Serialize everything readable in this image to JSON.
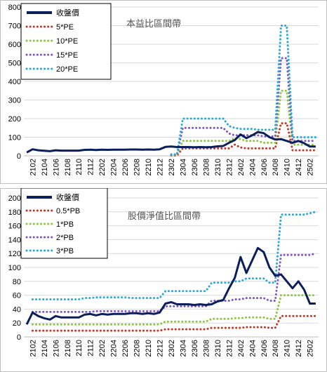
{
  "chart_data": [
    {
      "type": "line",
      "title": "本益比區間帶",
      "ylim": [
        0,
        800
      ],
      "yticks": [
        0,
        100,
        200,
        300,
        400,
        500,
        600,
        700,
        800
      ],
      "grid": true,
      "legend_position": "top-left",
      "x_tick_labels": [
        "2102",
        "2104",
        "2106",
        "2108",
        "2110",
        "2112",
        "2202",
        "2204",
        "2206",
        "2208",
        "2210",
        "2212",
        "2302",
        "2304",
        "2306",
        "2308",
        "2310",
        "2312",
        "2402",
        "2404",
        "2406",
        "2408",
        "2410",
        "2412",
        "2502"
      ],
      "x": [
        "2101",
        "2102",
        "2103",
        "2104",
        "2105",
        "2106",
        "2107",
        "2108",
        "2109",
        "2110",
        "2111",
        "2112",
        "2201",
        "2202",
        "2203",
        "2204",
        "2205",
        "2206",
        "2207",
        "2208",
        "2209",
        "2210",
        "2211",
        "2212",
        "2301",
        "2302",
        "2303",
        "2304",
        "2305",
        "2306",
        "2307",
        "2308",
        "2309",
        "2310",
        "2311",
        "2312",
        "2401",
        "2402",
        "2403",
        "2404",
        "2405",
        "2406",
        "2407",
        "2408",
        "2409",
        "2410",
        "2411",
        "2412",
        "2501",
        "2502",
        "2503"
      ],
      "series": [
        {
          "name": "收盤價",
          "color": "#0b1f5c",
          "dash": "solid",
          "values": [
            18,
            35,
            30,
            27,
            25,
            30,
            28,
            28,
            28,
            28,
            32,
            33,
            31,
            33,
            32,
            33,
            33,
            33,
            34,
            34,
            33,
            34,
            33,
            35,
            48,
            50,
            47,
            47,
            47,
            46,
            47,
            46,
            47,
            51,
            53,
            70,
            85,
            115,
            95,
            110,
            128,
            122,
            100,
            88,
            90,
            80,
            70,
            80,
            68,
            50,
            50
          ]
        },
        {
          "name": "5*PE",
          "color": "#c0392b",
          "dash": "dotted",
          "values": [
            null,
            null,
            null,
            null,
            null,
            null,
            null,
            null,
            null,
            null,
            null,
            null,
            null,
            null,
            null,
            null,
            null,
            null,
            null,
            null,
            null,
            null,
            null,
            null,
            null,
            2,
            2,
            40,
            40,
            40,
            40,
            40,
            40,
            40,
            40,
            40,
            60,
            45,
            40,
            40,
            40,
            40,
            40,
            40,
            175,
            175,
            30,
            30,
            30,
            30,
            30
          ]
        },
        {
          "name": "10*PE",
          "color": "#8dc63f",
          "dash": "dotted",
          "values": [
            null,
            null,
            null,
            null,
            null,
            null,
            null,
            null,
            null,
            null,
            null,
            null,
            null,
            null,
            null,
            null,
            null,
            null,
            null,
            null,
            null,
            null,
            null,
            null,
            null,
            4,
            4,
            80,
            80,
            80,
            80,
            80,
            80,
            80,
            80,
            80,
            95,
            90,
            80,
            80,
            80,
            70,
            70,
            70,
            350,
            350,
            60,
            60,
            60,
            60,
            60
          ]
        },
        {
          "name": "15*PE",
          "color": "#7e57c2",
          "dash": "dotted",
          "values": [
            null,
            null,
            null,
            null,
            null,
            null,
            null,
            null,
            null,
            null,
            null,
            null,
            null,
            null,
            null,
            null,
            null,
            null,
            null,
            null,
            null,
            null,
            null,
            null,
            null,
            6,
            6,
            150,
            150,
            150,
            150,
            150,
            150,
            150,
            150,
            120,
            110,
            110,
            110,
            110,
            110,
            105,
            105,
            105,
            525,
            525,
            80,
            80,
            80,
            80,
            80
          ]
        },
        {
          "name": "20*PE",
          "color": "#29a9d6",
          "dash": "dotted",
          "values": [
            null,
            null,
            null,
            null,
            null,
            null,
            null,
            null,
            null,
            null,
            null,
            null,
            null,
            null,
            null,
            null,
            null,
            null,
            null,
            null,
            null,
            null,
            null,
            null,
            null,
            8,
            8,
            200,
            200,
            200,
            200,
            200,
            200,
            200,
            200,
            160,
            150,
            145,
            145,
            145,
            140,
            140,
            140,
            140,
            700,
            700,
            100,
            100,
            100,
            100,
            100
          ]
        }
      ]
    },
    {
      "type": "line",
      "title": "股價淨值比區間帶",
      "ylim": [
        0,
        200
      ],
      "yticks": [
        0,
        20,
        40,
        60,
        80,
        100,
        120,
        140,
        160,
        180,
        200
      ],
      "grid": true,
      "legend_position": "top-left",
      "x_tick_labels": [
        "2102",
        "2104",
        "2106",
        "2108",
        "2110",
        "2112",
        "2202",
        "2204",
        "2206",
        "2208",
        "2210",
        "2212",
        "2302",
        "2304",
        "2306",
        "2308",
        "2310",
        "2312",
        "2402",
        "2404",
        "2406",
        "2408",
        "2410",
        "2412",
        "2502"
      ],
      "x": [
        "2101",
        "2102",
        "2103",
        "2104",
        "2105",
        "2106",
        "2107",
        "2108",
        "2109",
        "2110",
        "2111",
        "2112",
        "2201",
        "2202",
        "2203",
        "2204",
        "2205",
        "2206",
        "2207",
        "2208",
        "2209",
        "2210",
        "2211",
        "2212",
        "2301",
        "2302",
        "2303",
        "2304",
        "2305",
        "2306",
        "2307",
        "2308",
        "2309",
        "2310",
        "2311",
        "2312",
        "2401",
        "2402",
        "2403",
        "2404",
        "2405",
        "2406",
        "2407",
        "2408",
        "2409",
        "2410",
        "2411",
        "2412",
        "2501",
        "2502",
        "2503"
      ],
      "series": [
        {
          "name": "收盤價",
          "color": "#0b1f5c",
          "dash": "solid",
          "values": [
            18,
            35,
            30,
            27,
            25,
            30,
            28,
            28,
            28,
            28,
            32,
            33,
            31,
            33,
            32,
            33,
            33,
            33,
            34,
            34,
            33,
            34,
            33,
            35,
            48,
            50,
            47,
            47,
            47,
            46,
            47,
            46,
            47,
            51,
            53,
            70,
            85,
            115,
            92,
            110,
            128,
            122,
            100,
            88,
            90,
            80,
            70,
            80,
            68,
            48,
            48
          ]
        },
        {
          "name": "0.5*PB",
          "color": "#c0392b",
          "dash": "dotted",
          "values": [
            null,
            9,
            9,
            9,
            9,
            9,
            9,
            9,
            9,
            9,
            9,
            9,
            9,
            9,
            9,
            9,
            9,
            9,
            9,
            9,
            9,
            9,
            9,
            9,
            11,
            11,
            11,
            11,
            11,
            11,
            11,
            11,
            13,
            13,
            13,
            13,
            13,
            13,
            14,
            14,
            14,
            14,
            13,
            13,
            30,
            30,
            30,
            30,
            30,
            30,
            30
          ]
        },
        {
          "name": "1*PB",
          "color": "#8dc63f",
          "dash": "dotted",
          "values": [
            null,
            18,
            18,
            18,
            18,
            18,
            18,
            18,
            18,
            18,
            18,
            18,
            18,
            18,
            18,
            18,
            18,
            18,
            18,
            18,
            18,
            18,
            18,
            18,
            22,
            22,
            22,
            22,
            22,
            22,
            22,
            22,
            26,
            26,
            26,
            26,
            27,
            27,
            28,
            28,
            28,
            28,
            26,
            26,
            60,
            60,
            60,
            60,
            60,
            60,
            60
          ]
        },
        {
          "name": "2*PB",
          "color": "#7e57c2",
          "dash": "dotted",
          "values": [
            null,
            36,
            36,
            36,
            36,
            36,
            36,
            36,
            36,
            36,
            36,
            36,
            37,
            37,
            37,
            37,
            37,
            37,
            37,
            37,
            37,
            37,
            37,
            37,
            44,
            44,
            44,
            44,
            44,
            44,
            44,
            44,
            52,
            52,
            52,
            52,
            54,
            54,
            56,
            56,
            56,
            56,
            52,
            52,
            118,
            118,
            118,
            118,
            118,
            118,
            120
          ]
        },
        {
          "name": "3*PB",
          "color": "#29a9d6",
          "dash": "dotted",
          "values": [
            null,
            54,
            54,
            54,
            54,
            54,
            54,
            54,
            54,
            54,
            56,
            56,
            57,
            57,
            57,
            57,
            57,
            57,
            56,
            56,
            56,
            56,
            56,
            56,
            66,
            66,
            66,
            66,
            66,
            66,
            66,
            66,
            78,
            78,
            78,
            78,
            80,
            80,
            84,
            84,
            84,
            84,
            78,
            78,
            176,
            176,
            176,
            176,
            176,
            178,
            180
          ]
        }
      ]
    }
  ]
}
